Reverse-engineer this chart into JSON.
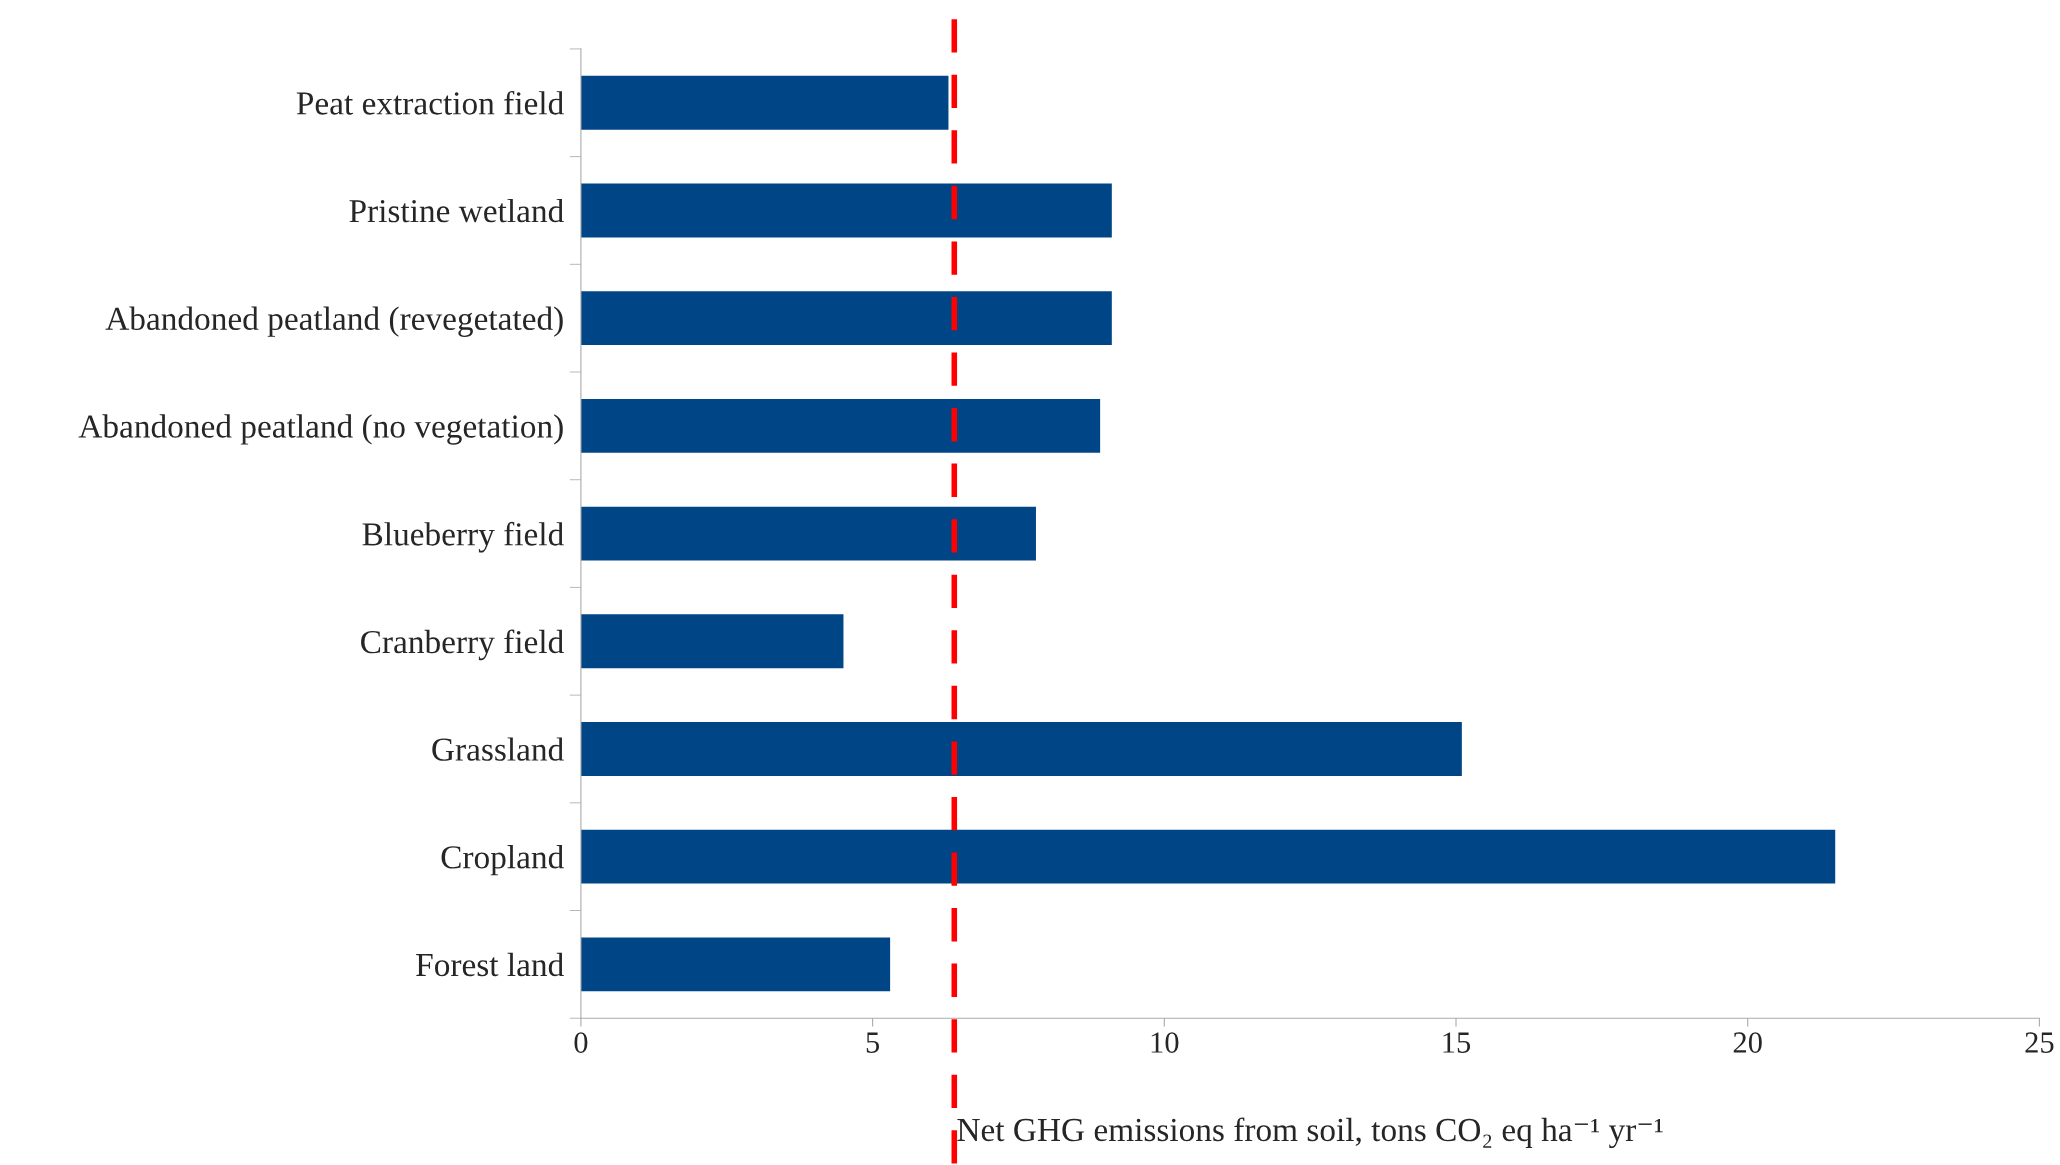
{
  "chart_data": {
    "type": "bar",
    "orientation": "horizontal",
    "xlabel": "Net GHG emissions from soil, tons CO₂ eq ha⁻¹ yr⁻¹",
    "categories": [
      "Peat extraction field",
      "Pristine wetland",
      "Abandoned peatland (revegetated)",
      "Abandoned peatland (no vegetation)",
      "Blueberry field",
      "Cranberry field",
      "Grassland",
      "Cropland",
      "Forest land"
    ],
    "values": [
      6.3,
      9.1,
      9.1,
      8.9,
      7.8,
      4.5,
      15.1,
      21.5,
      5.3
    ],
    "color": "#004586",
    "xlim": [
      0,
      25
    ],
    "xticks": [
      0,
      5,
      10,
      15,
      20,
      25
    ],
    "ref_lines": [
      {
        "axis": "x",
        "value": 6.4,
        "color": "#ff0000",
        "line_style": "dashed"
      }
    ],
    "grid": false
  }
}
